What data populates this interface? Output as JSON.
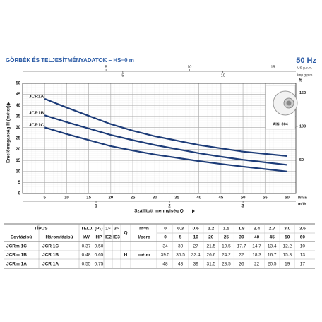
{
  "header": {
    "title": "GÖRBÉK ÉS TELJESÍTMÉNYADATOK  –  HS=0 m",
    "freq": "50 Hz"
  },
  "chart_data": {
    "type": "line",
    "xlabel": "Szállított mennyiség Q",
    "xunit": "l/min",
    "ylabel": "Emelőmagasság H (méter)",
    "x": [
      5,
      10,
      20,
      25,
      30,
      40,
      45,
      50,
      60
    ],
    "series": [
      {
        "name": "JCR1A",
        "color": "#1d3c78",
        "values": [
          43,
          39,
          31.5,
          28.5,
          26,
          22,
          20.5,
          19,
          17
        ]
      },
      {
        "name": "JCR1B",
        "color": "#1d3c78",
        "values": [
          35.5,
          32.4,
          26.6,
          24.2,
          22,
          18.3,
          16.7,
          15.3,
          13
        ]
      },
      {
        "name": "JCR1C",
        "color": "#1d3c78",
        "values": [
          30,
          27,
          21.5,
          19.5,
          17.7,
          14.7,
          13.4,
          12.2,
          10
        ]
      }
    ],
    "xlim": [
      0,
      62
    ],
    "xticks": [
      5,
      10,
      15,
      20,
      25,
      30,
      35,
      40,
      45,
      50,
      55,
      60
    ],
    "ylim": [
      0,
      50
    ],
    "yticks": [
      0,
      5,
      10,
      15,
      20,
      25,
      30,
      35,
      40,
      45,
      50
    ],
    "grid": true,
    "y2label": "ft",
    "y2lim": [
      0,
      164
    ],
    "y2ticks": [
      50,
      100,
      150
    ],
    "top_axes": [
      {
        "label": "US g.p.m.",
        "lim": [
          0,
          16.38
        ],
        "ticks": [
          5,
          10,
          15
        ]
      },
      {
        "label": "Imp g.p.m.",
        "lim": [
          0,
          13.64
        ],
        "ticks": [
          5,
          10
        ]
      }
    ],
    "bottom_axis2": {
      "label": "m³/h",
      "lim": [
        0,
        3.72
      ],
      "ticks": [
        1,
        2,
        3
      ]
    },
    "inset_label": "AISI 304"
  },
  "table": {
    "header1": {
      "type": "TÍPUS",
      "power": "TELJ. (P₂)",
      "ph1": "1~",
      "ph3": "3~",
      "q": "Q",
      "qunit1": "m³/h"
    },
    "header2": {
      "single": "Egyfázisú",
      "three": "Háromfázisú",
      "kw": "kW",
      "hp": "HP",
      "ie2": "IE2",
      "ie3": "IE3",
      "qunit2": "l/perc"
    },
    "q_m3h": [
      0,
      0.3,
      0.6,
      1.2,
      1.5,
      1.8,
      2.4,
      2.7,
      "3.0",
      3.6
    ],
    "q_lmin": [
      0,
      5,
      10,
      20,
      25,
      30,
      40,
      45,
      50,
      60
    ],
    "h_label": "H",
    "h_unit": "méter",
    "rows": [
      {
        "single": "JCRm 1C",
        "three": "JCR 1C",
        "kw": 0.37,
        "hp": "0.50",
        "h": [
          34,
          30,
          27,
          21.5,
          19.5,
          17.7,
          14.7,
          13.4,
          12.2,
          10
        ]
      },
      {
        "single": "JCRm 1B",
        "three": "JCR 1B",
        "kw": 0.48,
        "hp": 0.65,
        "h": [
          39.5,
          35.5,
          32.4,
          26.6,
          24.2,
          22,
          18.3,
          16.7,
          15.3,
          13
        ]
      },
      {
        "single": "JCRm 1A",
        "three": "JCR 1A",
        "kw": 0.55,
        "hp": 0.75,
        "h": [
          48,
          43,
          39,
          31.5,
          28.5,
          26,
          22,
          20.5,
          19,
          17
        ]
      }
    ]
  }
}
